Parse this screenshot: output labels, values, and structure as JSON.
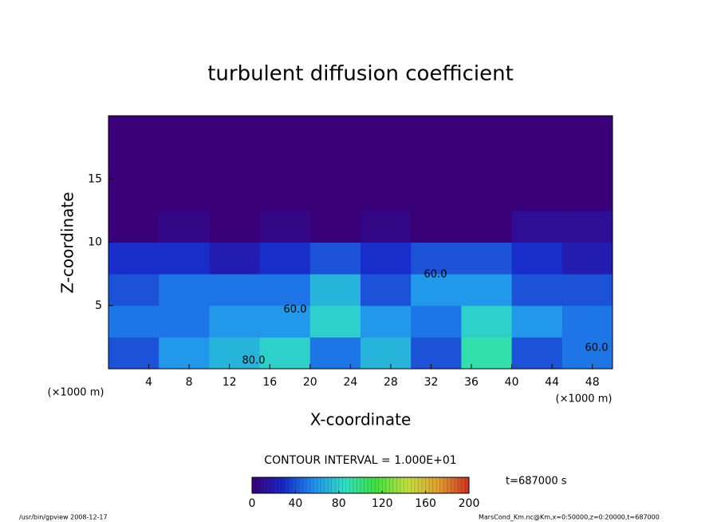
{
  "chart_data": {
    "type": "contour",
    "title": "turbulent diffusion coefficient",
    "xlabel": "X-coordinate",
    "ylabel": "Z-coordinate",
    "x_unit": "(×1000 m)",
    "y_unit": "(×1000 m)",
    "xlim": [
      0,
      50
    ],
    "ylim": [
      0,
      20
    ],
    "xticks": [
      4,
      8,
      12,
      16,
      20,
      24,
      28,
      32,
      36,
      40,
      44,
      48
    ],
    "yticks": [
      5,
      10,
      15
    ],
    "field": {
      "x": [
        2.5,
        7.5,
        12.5,
        17.5,
        22.5,
        27.5,
        32.5,
        37.5,
        42.5,
        47.5
      ],
      "z": [
        1.25,
        3.75,
        6.25,
        8.75,
        11.25,
        13.75,
        16.25,
        18.75
      ],
      "values": [
        [
          40,
          60,
          70,
          80,
          50,
          70,
          40,
          90,
          40,
          50
        ],
        [
          50,
          50,
          60,
          60,
          80,
          60,
          50,
          80,
          60,
          50
        ],
        [
          40,
          50,
          50,
          50,
          70,
          40,
          60,
          60,
          40,
          40
        ],
        [
          30,
          30,
          20,
          30,
          40,
          30,
          40,
          40,
          30,
          20
        ],
        [
          0,
          5,
          0,
          5,
          0,
          5,
          0,
          0,
          10,
          10
        ],
        [
          0,
          0,
          0,
          0,
          0,
          0,
          0,
          0,
          0,
          0
        ],
        [
          0,
          0,
          0,
          0,
          0,
          0,
          0,
          0,
          0,
          0
        ],
        [
          0,
          0,
          0,
          0,
          0,
          0,
          0,
          0,
          0,
          0
        ]
      ]
    },
    "contour_labels": [
      "60.0",
      "80.0",
      "60.0",
      "60.0"
    ],
    "contour_interval_label": "CONTOUR INTERVAL = 1.000E+01",
    "colorbar": {
      "lim": [
        0,
        200
      ],
      "ticks": [
        0,
        40,
        80,
        120,
        160,
        200
      ],
      "colormap": [
        "#3a0078",
        "#1828c8",
        "#2090f0",
        "#30e0c0",
        "#40e040",
        "#c0e040",
        "#e0a030",
        "#d03020"
      ]
    },
    "time_label": "t=687000 s",
    "footer_left": "/usr/bin/gpview  2008-12-17",
    "footer_right": "MarsCond_Km.nc@Km,x=0:50000,z=0:20000,t=687000"
  }
}
